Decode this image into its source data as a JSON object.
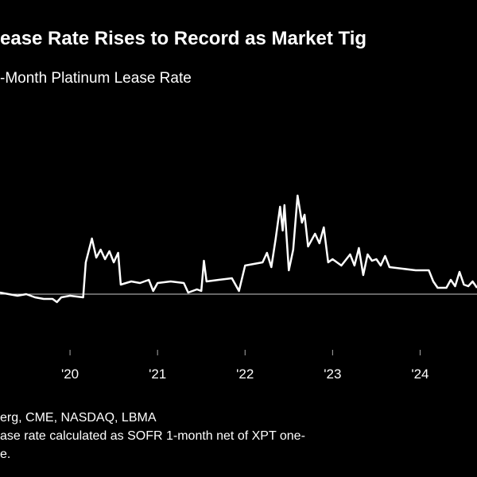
{
  "chart_data": {
    "type": "line",
    "title": "ease Rate Rises to Record as Market Tig",
    "subtitle": "-Month Platinum Lease Rate",
    "source": "erg, CME, NASDAQ, LBMA",
    "notes": [
      "ase rate calculated as SOFR 1-month net of XPT one-",
      "e."
    ],
    "x": [
      2019.2,
      2019.3,
      2019.4,
      2019.5,
      2019.6,
      2019.7,
      2019.8,
      2019.85,
      2019.9,
      2020.0,
      2020.15,
      2020.18,
      2020.25,
      2020.3,
      2020.35,
      2020.4,
      2020.45,
      2020.5,
      2020.55,
      2020.58,
      2020.7,
      2020.8,
      2020.9,
      2020.95,
      2021.0,
      2021.15,
      2021.3,
      2021.35,
      2021.45,
      2021.5,
      2021.53,
      2021.56,
      2021.7,
      2021.85,
      2021.93,
      2022.0,
      2022.1,
      2022.2,
      2022.25,
      2022.3,
      2022.35,
      2022.4,
      2022.43,
      2022.45,
      2022.5,
      2022.55,
      2022.6,
      2022.65,
      2022.68,
      2022.72,
      2022.8,
      2022.85,
      2022.9,
      2022.95,
      2023.0,
      2023.1,
      2023.2,
      2023.25,
      2023.3,
      2023.35,
      2023.4,
      2023.45,
      2023.5,
      2023.55,
      2023.6,
      2023.65,
      2023.8,
      2023.95,
      2024.1,
      2024.15,
      2024.2,
      2024.3,
      2024.35,
      2024.4,
      2024.45,
      2024.5,
      2024.55,
      2024.6,
      2024.65
    ],
    "series": [
      {
        "name": "Lease rate",
        "color": "#ffffff",
        "values": [
          0.1,
          0.0,
          -0.1,
          0.0,
          -0.2,
          -0.3,
          -0.3,
          -0.5,
          -0.2,
          -0.1,
          -0.2,
          2.0,
          3.5,
          2.3,
          2.8,
          2.2,
          2.7,
          2.0,
          2.6,
          0.6,
          0.8,
          0.7,
          0.9,
          0.2,
          0.7,
          0.8,
          0.7,
          0.1,
          0.3,
          0.2,
          2.1,
          0.8,
          0.9,
          1.0,
          0.2,
          1.8,
          1.9,
          2.0,
          2.6,
          1.7,
          3.5,
          5.5,
          4.0,
          5.6,
          1.5,
          2.8,
          6.2,
          4.5,
          5.0,
          3.0,
          3.8,
          3.2,
          4.2,
          2.0,
          2.2,
          1.8,
          2.5,
          1.8,
          2.9,
          1.2,
          2.5,
          2.1,
          2.2,
          1.8,
          2.4,
          1.7,
          1.6,
          1.5,
          1.5,
          0.8,
          0.4,
          0.4,
          0.9,
          0.5,
          1.4,
          0.6,
          0.5,
          0.8,
          0.4
        ]
      }
    ],
    "xlim": [
      2019.2,
      2024.65
    ],
    "ylim": [
      -2.5,
      7
    ],
    "xticks": [
      {
        "value": 2020,
        "label": "'20"
      },
      {
        "value": 2021,
        "label": "'21"
      },
      {
        "value": 2022,
        "label": "'22"
      },
      {
        "value": 2023,
        "label": "'23"
      },
      {
        "value": 2024,
        "label": "'24"
      }
    ],
    "zero_line": 0
  }
}
